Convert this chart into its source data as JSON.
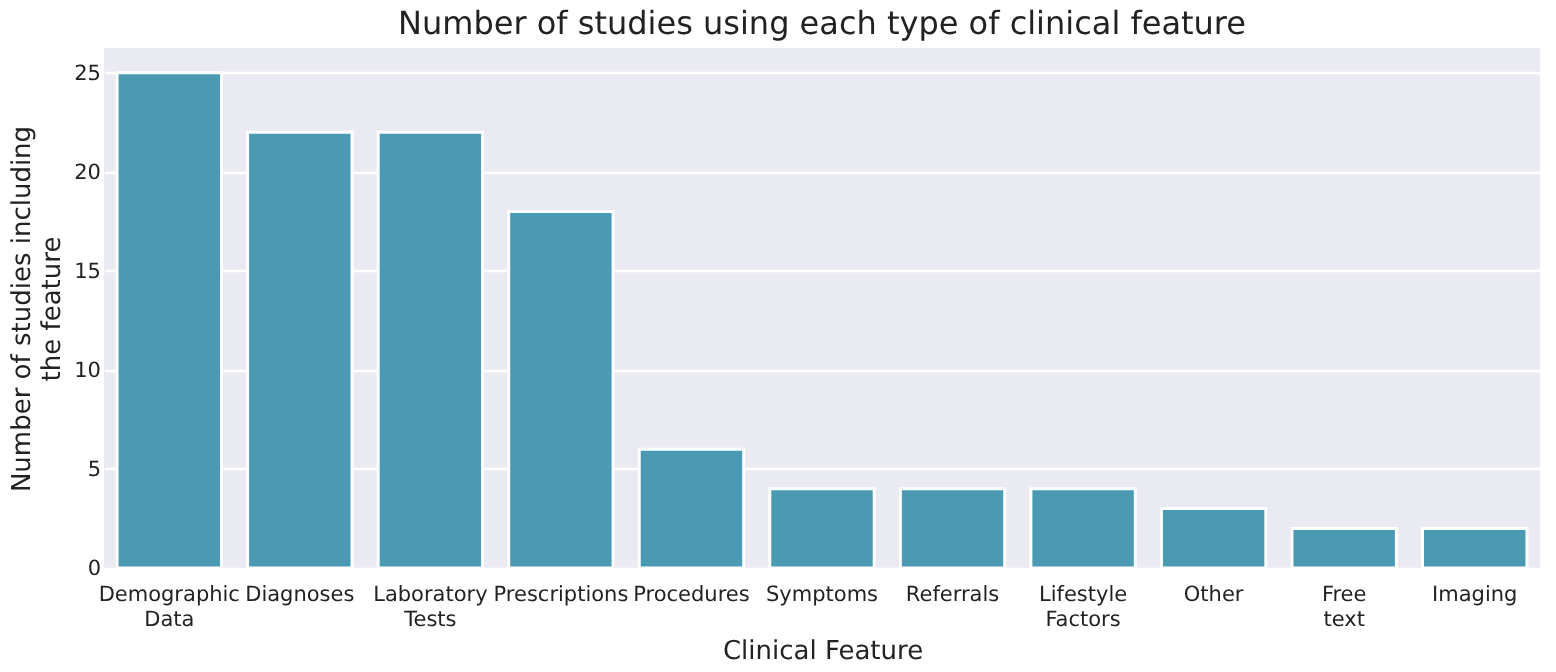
{
  "chart_data": {
    "type": "bar",
    "title": "Number of studies using each type of clinical feature",
    "xlabel": "Clinical Feature",
    "ylabel": "Number of studies including the feature",
    "categories": [
      "Demographic Data",
      "Diagnoses",
      "Laboratory Tests",
      "Prescriptions",
      "Procedures",
      "Symptoms",
      "Referrals",
      "Lifestyle Factors",
      "Other",
      "Free text",
      "Imaging"
    ],
    "values": [
      25,
      22,
      22,
      18,
      6,
      4,
      4,
      4,
      3,
      2,
      2
    ],
    "color": "#4a9ab4",
    "ylim": [
      0,
      26.25
    ],
    "yticks": [
      0,
      5,
      10,
      15,
      20,
      25
    ],
    "grid": "y"
  }
}
